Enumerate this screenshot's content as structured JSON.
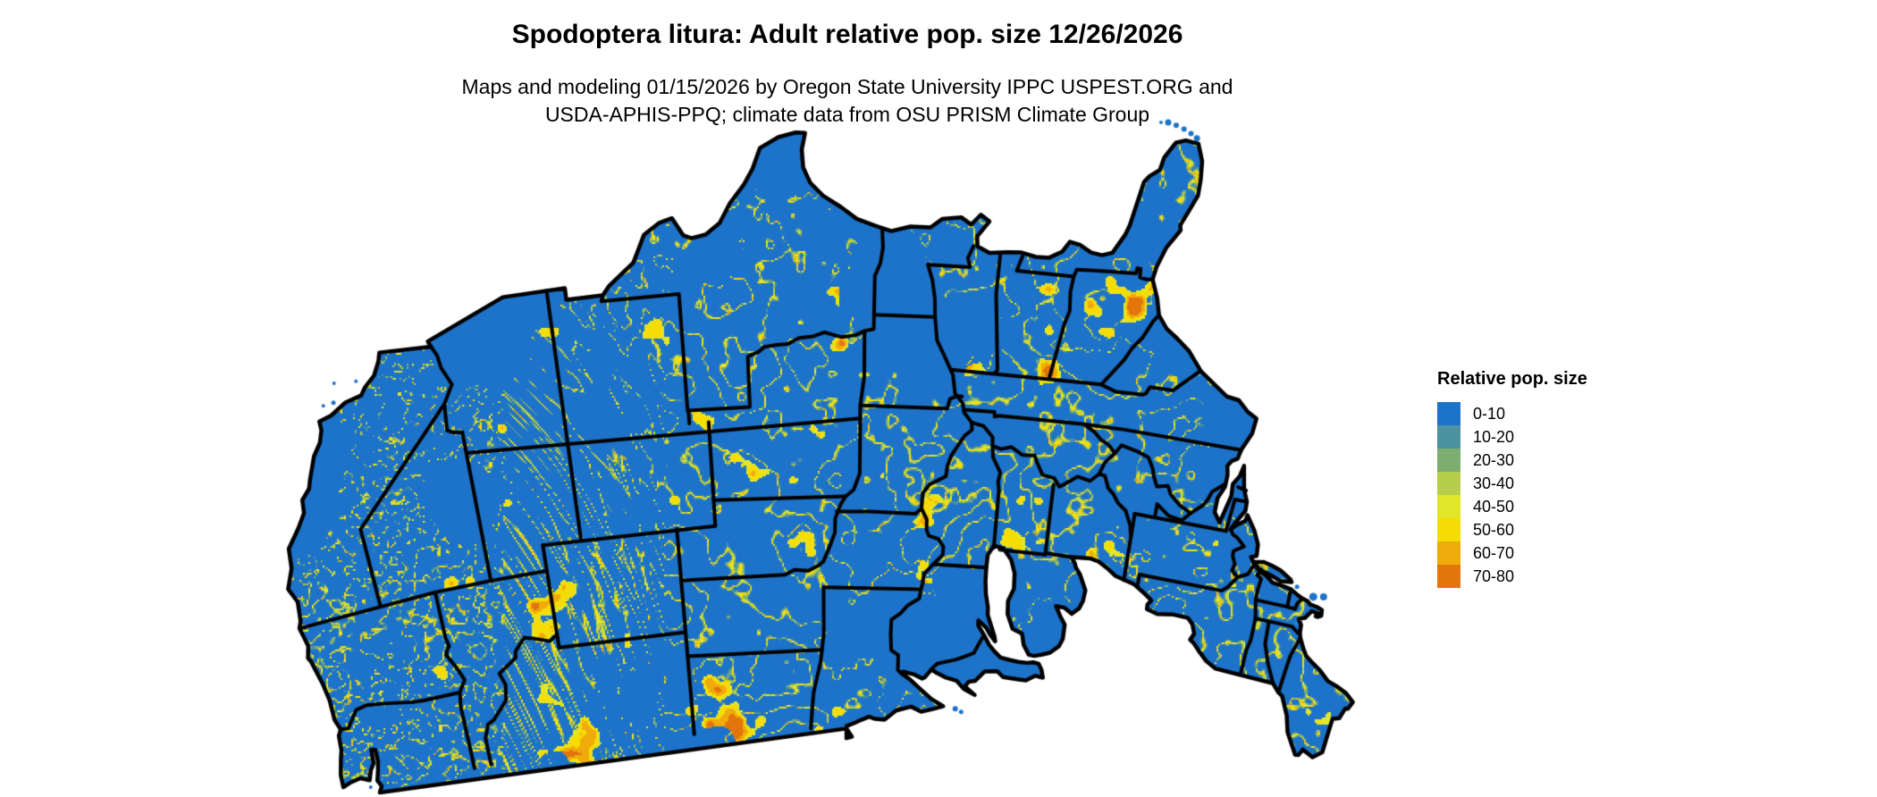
{
  "title": "Spodoptera litura: Adult relative pop. size 12/26/2026",
  "subtitle": {
    "line1": "Maps and modeling 01/15/2026 by Oregon State University IPPC USPEST.ORG and",
    "line2": "USDA-APHIS-PPQ; climate data from OSU PRISM Climate Group"
  },
  "legend": {
    "title": "Relative pop. size",
    "items": [
      {
        "label": "0-10",
        "color": "#1d73c9"
      },
      {
        "label": "10-20",
        "color": "#4d92a0"
      },
      {
        "label": "20-30",
        "color": "#7cae6f"
      },
      {
        "label": "30-40",
        "color": "#b7cd4c"
      },
      {
        "label": "40-50",
        "color": "#e2e62b"
      },
      {
        "label": "50-60",
        "color": "#f6dc05"
      },
      {
        "label": "60-70",
        "color": "#efab0b"
      },
      {
        "label": "70-80",
        "color": "#e2750c"
      }
    ]
  },
  "map": {
    "region": "Contiguous United States",
    "kind": "raster population-index map with state borders",
    "land_base_color": "#1d73c9",
    "state_border_color": "#000000",
    "water_background_color": "#ffffff"
  }
}
